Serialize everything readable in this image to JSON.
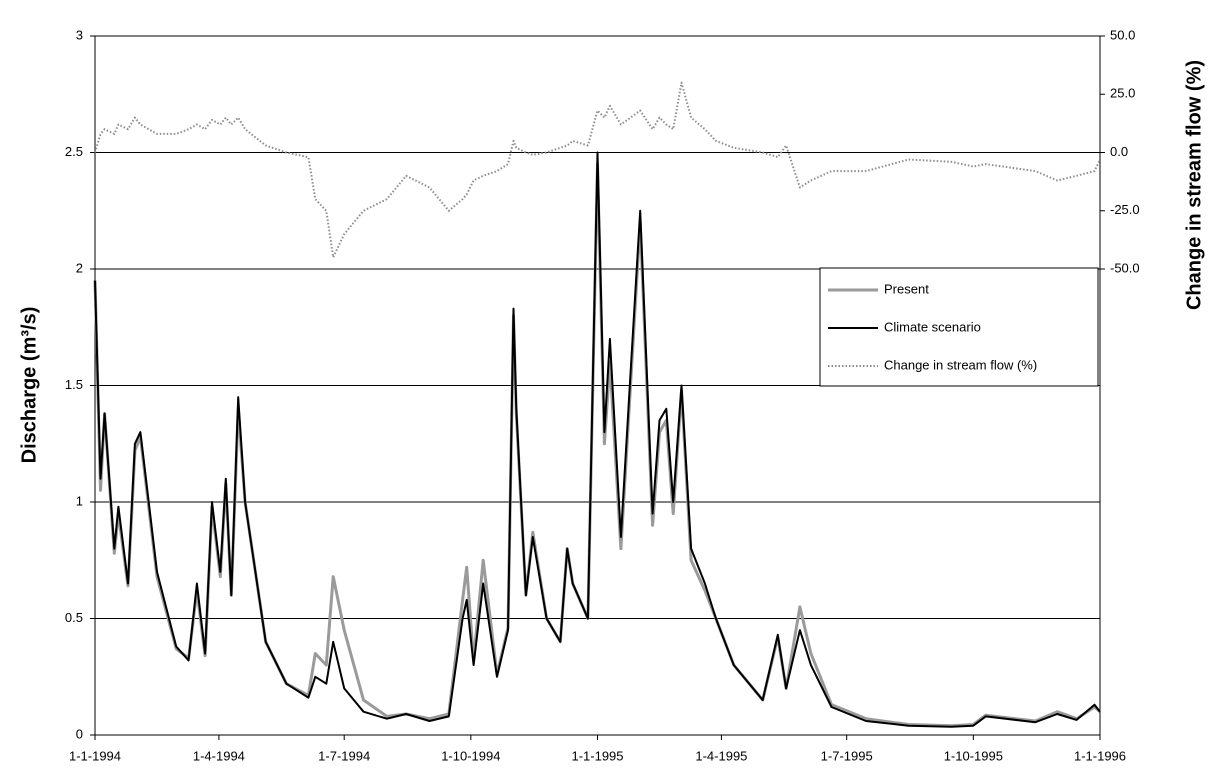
{
  "chart_data": {
    "type": "line",
    "y_label": "Discharge (m³/s)",
    "y2_label": "Change in stream flow (%)",
    "x": [
      "1-1-1994",
      "5-1-1994",
      "8-1-1994",
      "15-1-1994",
      "18-1-1994",
      "25-1-1994",
      "30-1-1994",
      "3-2-1994",
      "15-2-1994",
      "1-3-1994",
      "10-3-1994",
      "16-3-1994",
      "22-3-1994",
      "27-3-1994",
      "2-4-1994",
      "6-4-1994",
      "10-4-1994",
      "15-4-1994",
      "20-4-1994",
      "5-5-1994",
      "20-5-1994",
      "5-6-1994",
      "10-6-1994",
      "18-6-1994",
      "23-6-1994",
      "1-7-1994",
      "15-7-1994",
      "1-8-1994",
      "15-8-1994",
      "1-9-1994",
      "15-9-1994",
      "25-9-1994",
      "28-9-1994",
      "3-10-1994",
      "10-10-1994",
      "20-10-1994",
      "28-10-1994",
      "1-11-1994",
      "3-11-1994",
      "10-11-1994",
      "15-11-1994",
      "25-11-1994",
      "5-12-1994",
      "10-12-1994",
      "14-12-1994",
      "25-12-1994",
      "1-1-1995",
      "6-1-1995",
      "10-1-1995",
      "18-1-1995",
      "25-1-1995",
      "1-2-1995",
      "10-2-1995",
      "15-2-1995",
      "20-2-1995",
      "25-2-1995",
      "3-3-1995",
      "10-3-1995",
      "20-3-1995",
      "28-3-1995",
      "10-4-1995",
      "1-5-1995",
      "12-5-1995",
      "18-5-1995",
      "28-5-1995",
      "5-6-1995",
      "20-6-1995",
      "15-7-1995",
      "15-8-1995",
      "15-9-1995",
      "1-10-1995",
      "10-10-1995",
      "15-11-1995",
      "1-12-1995",
      "15-12-1995",
      "28-12-1995",
      "1-1-1996"
    ],
    "series": [
      {
        "name": "Present",
        "color": "#9a9a9a",
        "values": [
          1.95,
          1.05,
          1.38,
          0.78,
          0.95,
          0.64,
          1.22,
          1.28,
          0.68,
          0.37,
          0.33,
          0.62,
          0.34,
          0.98,
          0.68,
          1.08,
          0.6,
          1.4,
          1.0,
          0.4,
          0.22,
          0.17,
          0.35,
          0.3,
          0.68,
          0.45,
          0.15,
          0.08,
          0.09,
          0.07,
          0.09,
          0.58,
          0.72,
          0.32,
          0.75,
          0.26,
          0.46,
          1.8,
          1.38,
          0.6,
          0.87,
          0.5,
          0.4,
          0.8,
          0.65,
          0.5,
          2.45,
          1.25,
          1.6,
          0.8,
          1.5,
          2.2,
          0.9,
          1.3,
          1.35,
          0.95,
          1.48,
          0.75,
          0.62,
          0.5,
          0.3,
          0.15,
          0.42,
          0.2,
          0.55,
          0.35,
          0.13,
          0.07,
          0.045,
          0.04,
          0.045,
          0.085,
          0.06,
          0.1,
          0.07,
          0.12,
          0.1
        ]
      },
      {
        "name": "Climate scenario",
        "color": "#000000",
        "values": [
          1.95,
          1.1,
          1.38,
          0.8,
          0.98,
          0.65,
          1.25,
          1.3,
          0.7,
          0.38,
          0.32,
          0.65,
          0.35,
          1.0,
          0.7,
          1.1,
          0.6,
          1.45,
          1.0,
          0.4,
          0.22,
          0.16,
          0.25,
          0.22,
          0.4,
          0.2,
          0.1,
          0.07,
          0.09,
          0.06,
          0.08,
          0.5,
          0.58,
          0.3,
          0.65,
          0.25,
          0.45,
          1.83,
          1.4,
          0.6,
          0.85,
          0.5,
          0.4,
          0.8,
          0.65,
          0.5,
          2.5,
          1.3,
          1.7,
          0.85,
          1.55,
          2.25,
          0.95,
          1.35,
          1.4,
          1.0,
          1.5,
          0.8,
          0.65,
          0.5,
          0.3,
          0.15,
          0.43,
          0.2,
          0.45,
          0.3,
          0.12,
          0.06,
          0.04,
          0.035,
          0.04,
          0.08,
          0.055,
          0.09,
          0.065,
          0.13,
          0.1
        ]
      },
      {
        "name": "Change in stream flow (%)",
        "color": "#8c8c8c",
        "axis": "y2",
        "dotted": true,
        "values": [
          0,
          8,
          10,
          8,
          12,
          10,
          15,
          12,
          8,
          8,
          10,
          12,
          10,
          14,
          12,
          15,
          12,
          15,
          10,
          3,
          0,
          -2,
          -20,
          -25,
          -45,
          -35,
          -25,
          -20,
          -10,
          -15,
          -25,
          -20,
          -18,
          -12,
          -10,
          -8,
          -5,
          5,
          2,
          0,
          -1,
          0,
          2,
          3,
          5,
          3,
          18,
          15,
          20,
          12,
          15,
          18,
          10,
          15,
          12,
          10,
          30,
          15,
          10,
          5,
          2,
          0,
          -2,
          3,
          -15,
          -12,
          -8,
          -8,
          -3,
          -4,
          -6,
          -5,
          -8,
          -12,
          -10,
          -8,
          -3
        ]
      }
    ],
    "xlim": [
      "1-1-1994",
      "1-1-1996"
    ],
    "xticks": [
      "1-1-1994",
      "1-4-1994",
      "1-7-1994",
      "1-10-1994",
      "1-1-1995",
      "1-4-1995",
      "1-7-1995",
      "1-10-1995",
      "1-1-1996"
    ],
    "ylim": [
      0,
      3
    ],
    "yticks": [
      0,
      0.5,
      1,
      1.5,
      2,
      2.5,
      3
    ],
    "y2lim": [
      -250,
      50
    ],
    "y2ticks": [
      {
        "value": -50,
        "label": "-50.0"
      },
      {
        "value": -25,
        "label": "-25.0"
      },
      {
        "value": 0,
        "label": "0.0"
      },
      {
        "value": 25,
        "label": "25.0"
      },
      {
        "value": 50,
        "label": "50.0"
      }
    ],
    "grid": true,
    "legend": "right"
  }
}
